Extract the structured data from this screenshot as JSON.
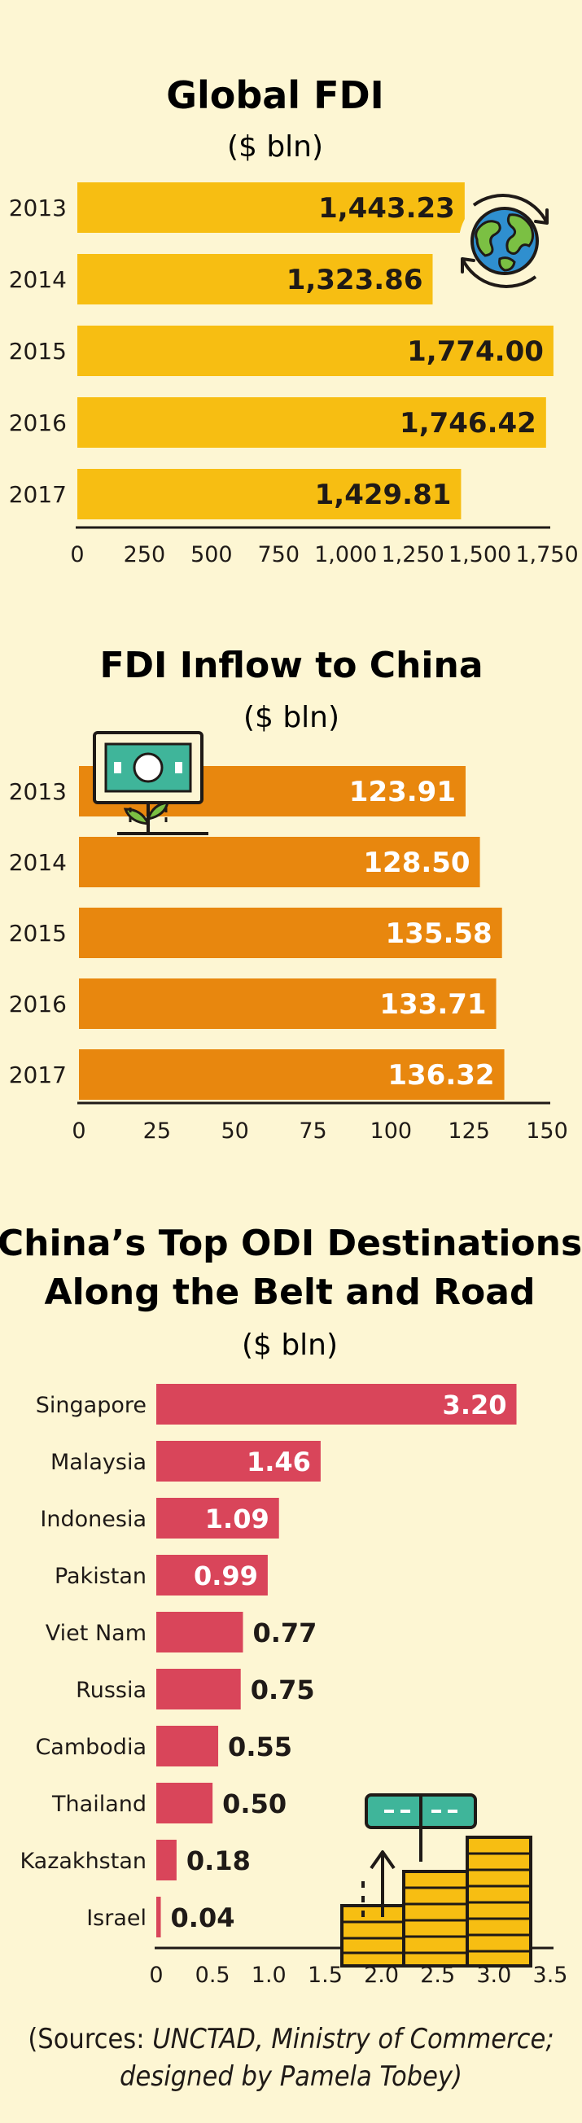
{
  "chart_data": [
    {
      "type": "bar",
      "orientation": "horizontal",
      "title": "Global FDI",
      "subtitle": "($ bln)",
      "categories": [
        "2013",
        "2014",
        "2015",
        "2016",
        "2017"
      ],
      "values": [
        1443.23,
        1323.86,
        1774.0,
        1746.42,
        1429.81
      ],
      "value_labels": [
        "1,443.23",
        "1,323.86",
        "1,774.00",
        "1,746.42",
        "1,429.81"
      ],
      "xlim": [
        0,
        1750
      ],
      "x_ticks": [
        0,
        250,
        500,
        750,
        1000,
        1250,
        1500,
        1750
      ],
      "x_tick_labels": [
        "0",
        "250",
        "500",
        "750",
        "1,000",
        "1,250",
        "1,500",
        "1,750"
      ],
      "bar_color": "#f7be12",
      "label_color": "#1f1a17",
      "icon": "globe-icon"
    },
    {
      "type": "bar",
      "orientation": "horizontal",
      "title": "FDI Inflow to China",
      "subtitle": "($ bln)",
      "categories": [
        "2013",
        "2014",
        "2015",
        "2016",
        "2017"
      ],
      "values": [
        123.91,
        128.5,
        135.58,
        133.71,
        136.32
      ],
      "value_labels": [
        "123.91",
        "128.50",
        "135.58",
        "133.71",
        "136.32"
      ],
      "xlim": [
        0,
        150
      ],
      "x_ticks": [
        0,
        25,
        50,
        75,
        100,
        125,
        150
      ],
      "x_tick_labels": [
        "0",
        "25",
        "50",
        "75",
        "100",
        "125",
        "150"
      ],
      "bar_color": "#e8870e",
      "label_color": "#ffffff",
      "icon": "money-plant-icon"
    },
    {
      "type": "bar",
      "orientation": "horizontal",
      "title": "China’s Top ODI Destinations",
      "title_line2": "Along the Belt and Road",
      "subtitle": "($ bln)",
      "categories": [
        "Singapore",
        "Malaysia",
        "Indonesia",
        "Pakistan",
        "Viet Nam",
        "Russia",
        "Cambodia",
        "Thailand",
        "Kazakhstan",
        "Israel"
      ],
      "values": [
        3.2,
        1.46,
        1.09,
        0.99,
        0.77,
        0.75,
        0.55,
        0.5,
        0.18,
        0.04
      ],
      "value_labels": [
        "3.20",
        "1.46",
        "1.09",
        "0.99",
        "0.77",
        "0.75",
        "0.55",
        "0.50",
        "0.18",
        "0.04"
      ],
      "xlim": [
        0,
        3.5
      ],
      "x_ticks": [
        0,
        0.5,
        1.0,
        1.5,
        2.0,
        2.5,
        3.0,
        3.5
      ],
      "x_tick_labels": [
        "0",
        "0.5",
        "1.0",
        "1.5",
        "2.0",
        "2.5",
        "3.0",
        "3.5"
      ],
      "bar_color": "#d9455a",
      "label_color": "#ffffff",
      "label_color_outside": "#1f1a17",
      "icon": "coin-stacks-icon"
    }
  ],
  "sources": {
    "open": "(Sources: ",
    "orgs": "UNCTAD, Ministry of Commerce;",
    "line2": "designed by Pamela Tobey)"
  }
}
